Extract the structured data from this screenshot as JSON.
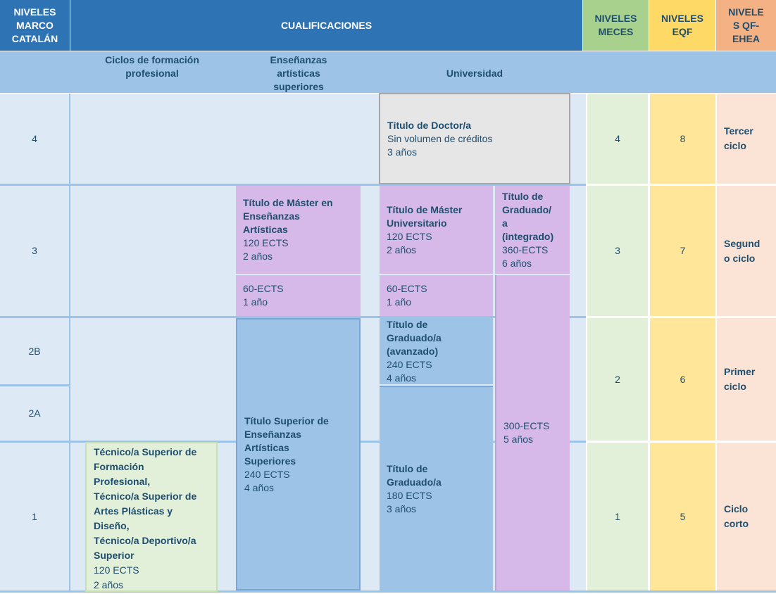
{
  "header": {
    "niveles_marco": [
      "NIVELES",
      "MARCO",
      "CATALÁN"
    ],
    "cualificaciones": "CUALIFICACIONES",
    "meces": [
      "NIVELES",
      "MECES"
    ],
    "eqf": [
      "NIVELES",
      "EQF"
    ],
    "qf_ehea": [
      "NIVELE",
      "S QF-",
      "EHEA"
    ]
  },
  "subheader": {
    "ciclos": [
      "Ciclos de formación",
      "profesional"
    ],
    "ensenanzas": [
      "Enseñanzas",
      "artísticas",
      "superiores"
    ],
    "universidad": "Universidad"
  },
  "levels": {
    "l4": "4",
    "l3": "3",
    "l2b": "2B",
    "l2a": "2A",
    "l1": "1"
  },
  "meces": {
    "m4": "4",
    "m3": "3",
    "m2": "2",
    "m1": "1"
  },
  "eqf": {
    "e8": "8",
    "e7": "7",
    "e6": "6",
    "e5": "5"
  },
  "qf": {
    "tercer": [
      "Tercer",
      "ciclo"
    ],
    "segundo": [
      "Segund",
      "o ciclo"
    ],
    "primer": [
      "Primer",
      "ciclo"
    ],
    "corto": [
      "Ciclo",
      "corto"
    ]
  },
  "cells": {
    "doctor": {
      "title": "Título de Doctor/a",
      "l1": "Sin volumen de créditos",
      "l2": "3 años"
    },
    "master_art": {
      "t1": "Título de Máster en",
      "t2": "Enseñanzas",
      "t3": "Artísticas",
      "l1": "120 ECTS",
      "l2": "2 años"
    },
    "master_univ": {
      "t1": "Título de Máster",
      "t2": "Universitario",
      "l1": "120 ECTS",
      "l2": "2 años"
    },
    "grad_integrado": {
      "t1": "Título de",
      "t2": "Graduado/",
      "t3": "a",
      "t4": "(integrado)",
      "l1": "360-ECTS",
      "l2": "6 años"
    },
    "art60": {
      "l1": "60-ECTS",
      "l2": "1 año"
    },
    "univ60": {
      "l1": "60-ECTS",
      "l2": "1 año"
    },
    "ects300": {
      "l1": "300-ECTS",
      "l2": "5 años"
    },
    "grad_avanzado": {
      "t1": "Título de",
      "t2": "Graduado/a",
      "t3": "(avanzado)",
      "l1": "240 ECTS",
      "l2": "4 años"
    },
    "grad": {
      "t1": "Título de",
      "t2": "Graduado/a",
      "l1": "180 ECTS",
      "l2": "3 años"
    },
    "superior_art": {
      "t1": "Título Superior de",
      "t2": "Enseñanzas",
      "t3": "Artísticas",
      "t4": "Superiores",
      "l1": "240 ECTS",
      "l2": "4 años"
    },
    "tecnico": {
      "t1": "Técnico/a Superior de",
      "t2": "Formación",
      "t3": "Profesional,",
      "t4": "Técnico/a Superior de",
      "t5": "Artes Plásticas y",
      "t6": "Diseño,",
      "t7": "Técnico/a Deportivo/a",
      "t8": "Superior",
      "l1": "120 ECTS",
      "l2": "2 años"
    }
  },
  "colors": {
    "header_blue": "#2e74b5",
    "subheader_blue": "#9dc3e6",
    "light_bg": "#dde9f5",
    "lavender": "#d7b9e9",
    "grey": "#e7e6e6",
    "green": "#e2efd9",
    "meces_header": "#a9d18e",
    "eqf_header": "#ffd966",
    "qf_header": "#f4b183",
    "yellow": "#ffe699",
    "peach": "#fbe4d5"
  }
}
